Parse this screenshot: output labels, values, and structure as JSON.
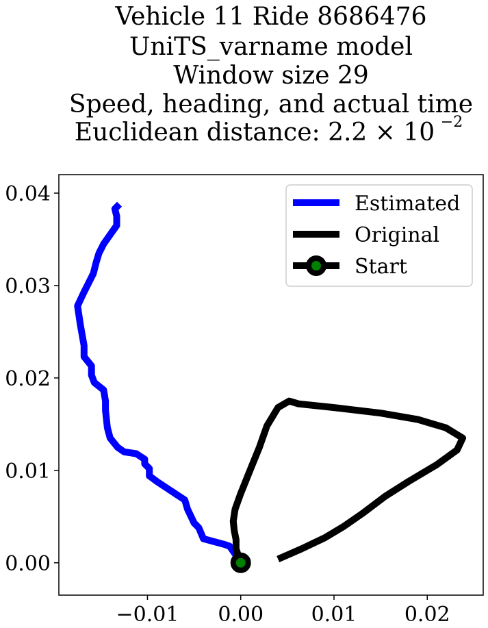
{
  "chart_data": {
    "type": "line",
    "title_lines": [
      "Vehicle 11 Ride 8686476",
      "UniTS_varname model",
      "Window size 29",
      "Speed, heading, and actual time",
      "Euclidean distance: 2.2 × 10",
      "−2"
    ],
    "xlabel": "",
    "ylabel": "",
    "xlim": [
      -0.0195,
      0.026
    ],
    "ylim": [
      -0.0035,
      0.042
    ],
    "x_ticks": [
      -0.01,
      0.0,
      0.01,
      0.02
    ],
    "x_tick_labels": [
      "−0.01",
      "0.00",
      "0.01",
      "0.02"
    ],
    "y_ticks": [
      0.0,
      0.01,
      0.02,
      0.03,
      0.04
    ],
    "y_tick_labels": [
      "0.00",
      "0.01",
      "0.02",
      "0.03",
      "0.04"
    ],
    "grid": false,
    "legend_position": "upper right",
    "series": [
      {
        "name": "Estimated",
        "color": "#0000ff",
        "points": [
          [
            0.0,
            0.0
          ],
          [
            -0.0005,
            0.0008
          ],
          [
            -0.0012,
            0.0018
          ],
          [
            -0.0018,
            0.002
          ],
          [
            -0.004,
            0.0026
          ],
          [
            -0.0045,
            0.0038
          ],
          [
            -0.005,
            0.0043
          ],
          [
            -0.0057,
            0.0058
          ],
          [
            -0.006,
            0.0068
          ],
          [
            -0.0075,
            0.0078
          ],
          [
            -0.009,
            0.0088
          ],
          [
            -0.0098,
            0.0094
          ],
          [
            -0.0098,
            0.0102
          ],
          [
            -0.0103,
            0.0107
          ],
          [
            -0.0103,
            0.0112
          ],
          [
            -0.0112,
            0.0118
          ],
          [
            -0.0125,
            0.012
          ],
          [
            -0.0132,
            0.0125
          ],
          [
            -0.014,
            0.0135
          ],
          [
            -0.0143,
            0.0146
          ],
          [
            -0.0145,
            0.0165
          ],
          [
            -0.0145,
            0.0175
          ],
          [
            -0.0147,
            0.0187
          ],
          [
            -0.0157,
            0.0195
          ],
          [
            -0.016,
            0.0203
          ],
          [
            -0.016,
            0.0213
          ],
          [
            -0.0168,
            0.0223
          ],
          [
            -0.0168,
            0.0235
          ],
          [
            -0.0172,
            0.0258
          ],
          [
            -0.0175,
            0.0278
          ],
          [
            -0.0168,
            0.0293
          ],
          [
            -0.0158,
            0.0313
          ],
          [
            -0.0155,
            0.0325
          ],
          [
            -0.0152,
            0.0335
          ],
          [
            -0.0147,
            0.0345
          ],
          [
            -0.014,
            0.0355
          ],
          [
            -0.0133,
            0.0365
          ],
          [
            -0.0133,
            0.0375
          ],
          [
            -0.0135,
            0.0383
          ],
          [
            -0.013,
            0.0388
          ]
        ]
      },
      {
        "name": "Original",
        "color": "#000000",
        "points": [
          [
            0.0,
            0.0
          ],
          [
            -0.0005,
            0.0015
          ],
          [
            -0.0005,
            0.0025
          ],
          [
            -0.0007,
            0.0035
          ],
          [
            -0.0008,
            0.0045
          ],
          [
            -0.0006,
            0.0058
          ],
          [
            0.0,
            0.0075
          ],
          [
            0.001,
            0.01
          ],
          [
            0.002,
            0.0125
          ],
          [
            0.0028,
            0.0148
          ],
          [
            0.004,
            0.0168
          ],
          [
            0.0052,
            0.0175
          ],
          [
            0.0062,
            0.0172
          ],
          [
            0.01,
            0.0168
          ],
          [
            0.015,
            0.0162
          ],
          [
            0.019,
            0.0155
          ],
          [
            0.022,
            0.0146
          ],
          [
            0.0238,
            0.0135
          ],
          [
            0.0232,
            0.0122
          ],
          [
            0.021,
            0.0106
          ],
          [
            0.018,
            0.0088
          ],
          [
            0.0155,
            0.0072
          ],
          [
            0.013,
            0.0053
          ],
          [
            0.011,
            0.0039
          ],
          [
            0.009,
            0.0027
          ],
          [
            0.0065,
            0.0015
          ],
          [
            0.004,
            0.0004
          ]
        ]
      }
    ],
    "start_marker": {
      "name": "Start",
      "x": 0.0,
      "y": 0.0,
      "edge_color": "#000000",
      "face_color": "#008000"
    }
  }
}
